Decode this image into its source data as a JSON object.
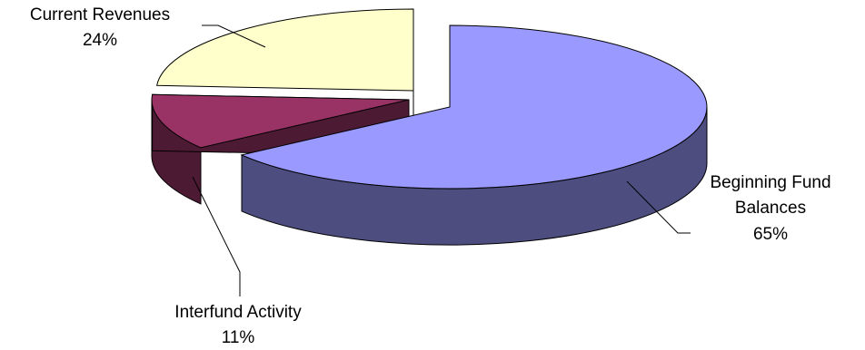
{
  "chart_data": {
    "type": "pie",
    "three_d": true,
    "exploded": true,
    "legend": "none",
    "slices": [
      {
        "label": "Beginning Fund Balances",
        "label_lines": [
          "Beginning Fund",
          "Balances"
        ],
        "value": 65,
        "value_label": "65%",
        "top_color": "#9999ff",
        "side_color": "#4d4d80"
      },
      {
        "label": "Interfund Activity",
        "label_lines": [
          "Interfund Activity"
        ],
        "value": 11,
        "value_label": "11%",
        "top_color": "#993366",
        "side_color": "#4d1a33"
      },
      {
        "label": "Current Revenues",
        "label_lines": [
          "Current Revenues"
        ],
        "value": 24,
        "value_label": "24%",
        "top_color": "#ffffcc",
        "side_color": "#808066"
      }
    ]
  }
}
